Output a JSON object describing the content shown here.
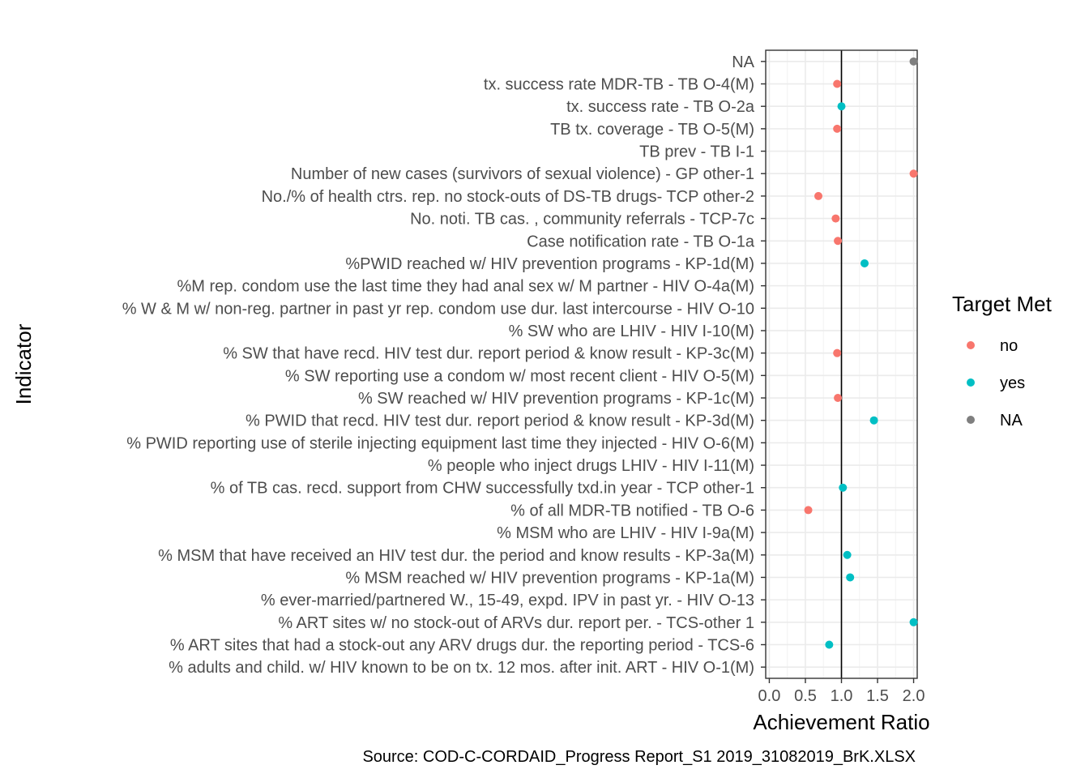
{
  "chart_data": {
    "type": "scatter",
    "xlabel": "Achievement Ratio",
    "ylabel": "Indicator",
    "xlim": [
      -0.05,
      2.05
    ],
    "x_ticks": [
      "0.0",
      "0.5",
      "1.0",
      "1.5",
      "2.0"
    ],
    "reference_line_x": 1.0,
    "grid": true,
    "caption": "Source: COD-C-CORDAID_Progress Report_S1 2019_31082019_BrK.XLSX",
    "legend": {
      "title": "Target Met",
      "placement": "right",
      "entries": [
        {
          "label": "no",
          "color": "#F8766D"
        },
        {
          "label": "yes",
          "color": "#00BFC4"
        },
        {
          "label": "NA",
          "color": "#7F7F7F"
        }
      ]
    },
    "categories": [
      "NA",
      "tx. success rate MDR-TB - TB O-4(M)",
      "tx. success rate - TB O-2a",
      "TB tx. coverage - TB O-5(M)",
      "TB prev - TB I-1",
      "Number of new cases (survivors of sexual violence) - GP other-1",
      "No./% of health ctrs. rep. no stock-outs of DS-TB drugs- TCP other-2",
      "No. noti. TB cas. , community referrals - TCP-7c",
      "Case notification rate - TB O-1a",
      "%PWID reached w/ HIV prevention programs - KP-1d(M)",
      "%M rep. condom use the last time they had anal sex w/ M partner - HIV O-4a(M)",
      "% W & M w/ non-reg. partner in past yr rep. condom use dur. last intercourse - HIV O-10",
      "% SW who are LHIV - HIV I-10(M)",
      "% SW that have recd. HIV test dur. report period & know result - KP-3c(M)",
      "% SW reporting use a condom w/ most recent client - HIV O-5(M)",
      "% SW reached w/ HIV prevention programs - KP-1c(M)",
      "% PWID that recd. HIV test dur. report period & know result - KP-3d(M)",
      "% PWID reporting use of sterile injecting equipment last time they injected - HIV O-6(M)",
      "% people who inject drugs LHIV - HIV I-11(M)",
      "% of TB cas. recd. support from CHW successfully txd.in year - TCP other-1",
      "% of all MDR-TB notified - TB O-6",
      "% MSM who are LHIV - HIV I-9a(M)",
      "% MSM that have received an HIV test dur. the period and know results - KP-3a(M)",
      "% MSM reached w/ HIV prevention programs - KP-1a(M)",
      "% ever-married/partnered W., 15-49, expd. IPV in past yr. - HIV O-13",
      "% ART sites w/ no stock-out of ARVs dur. report per. - TCS-other 1",
      "% ART sites that had a stock-out any ARV drugs dur. the reporting period - TCS-6",
      "% adults and child. w/ HIV known to be on tx. 12 mos. after init. ART - HIV O-1(M)"
    ],
    "points": [
      {
        "category": "NA",
        "x": 2.0,
        "target_met": "NA"
      },
      {
        "category": "tx. success rate MDR-TB - TB O-4(M)",
        "x": 0.94,
        "target_met": "no"
      },
      {
        "category": "tx. success rate - TB O-2a",
        "x": 1.0,
        "target_met": "yes"
      },
      {
        "category": "TB tx. coverage - TB O-5(M)",
        "x": 0.94,
        "target_met": "no"
      },
      {
        "category": "Number of new cases (survivors of sexual violence) - GP other-1",
        "x": 2.0,
        "target_met": "no"
      },
      {
        "category": "No./% of health ctrs. rep. no stock-outs of DS-TB drugs- TCP other-2",
        "x": 0.68,
        "target_met": "no"
      },
      {
        "category": "No. noti. TB cas. , community referrals - TCP-7c",
        "x": 0.92,
        "target_met": "no"
      },
      {
        "category": "Case notification rate - TB O-1a",
        "x": 0.95,
        "target_met": "no"
      },
      {
        "category": "%PWID reached w/ HIV prevention programs - KP-1d(M)",
        "x": 1.32,
        "target_met": "yes"
      },
      {
        "category": "% SW that have recd. HIV test dur. report period & know result - KP-3c(M)",
        "x": 0.94,
        "target_met": "no"
      },
      {
        "category": "% SW reached w/ HIV prevention programs - KP-1c(M)",
        "x": 0.95,
        "target_met": "no"
      },
      {
        "category": "% PWID that recd. HIV test dur. report period & know result - KP-3d(M)",
        "x": 1.45,
        "target_met": "yes"
      },
      {
        "category": "% of TB cas. recd. support from CHW successfully txd.in year - TCP other-1",
        "x": 1.02,
        "target_met": "yes"
      },
      {
        "category": "% of all MDR-TB notified - TB O-6",
        "x": 0.54,
        "target_met": "no"
      },
      {
        "category": "% MSM that have received an HIV test dur. the period and know results - KP-3a(M)",
        "x": 1.08,
        "target_met": "yes"
      },
      {
        "category": "% MSM reached w/ HIV prevention programs - KP-1a(M)",
        "x": 1.12,
        "target_met": "yes"
      },
      {
        "category": "% ART sites w/ no stock-out of ARVs dur. report per. - TCS-other 1",
        "x": 2.0,
        "target_met": "yes"
      },
      {
        "category": "% ART sites that had a stock-out any ARV drugs dur. the reporting period - TCS-6",
        "x": 0.83,
        "target_met": "yes"
      }
    ]
  }
}
